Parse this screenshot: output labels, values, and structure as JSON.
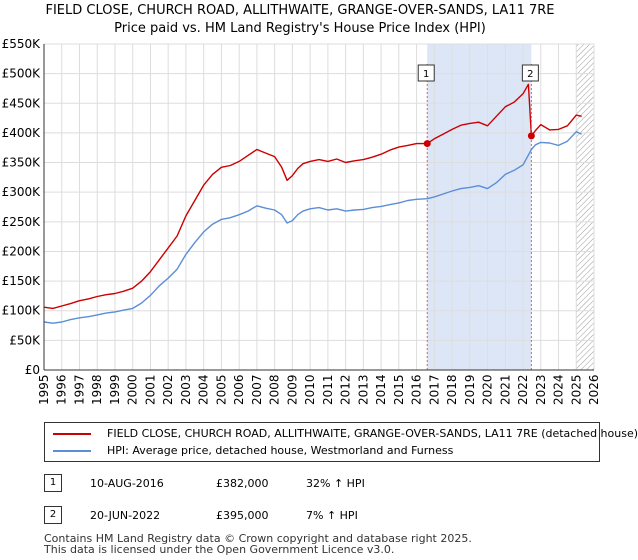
{
  "title_line1": "FIELD CLOSE, CHURCH ROAD, ALLITHWAITE, GRANGE-OVER-SANDS, LA11 7RE",
  "title_line2": "Price paid vs. HM Land Registry's House Price Index (HPI)",
  "chart_data": {
    "type": "line",
    "xlim": [
      1995,
      2026
    ],
    "ylim": [
      0,
      550000
    ],
    "x_ticks": [
      "1995",
      "1996",
      "1997",
      "1998",
      "1999",
      "2000",
      "2001",
      "2002",
      "2003",
      "2004",
      "2005",
      "2006",
      "2007",
      "2008",
      "2009",
      "2010",
      "2011",
      "2012",
      "2013",
      "2014",
      "2015",
      "2016",
      "2017",
      "2018",
      "2019",
      "2020",
      "2021",
      "2022",
      "2023",
      "2024",
      "2025",
      "2026"
    ],
    "y_ticks": [
      {
        "value": 0,
        "label": "£0"
      },
      {
        "value": 50000,
        "label": "£50K"
      },
      {
        "value": 100000,
        "label": "£100K"
      },
      {
        "value": 150000,
        "label": "£150K"
      },
      {
        "value": 200000,
        "label": "£200K"
      },
      {
        "value": 250000,
        "label": "£250K"
      },
      {
        "value": 300000,
        "label": "£300K"
      },
      {
        "value": 350000,
        "label": "£350K"
      },
      {
        "value": 400000,
        "label": "£400K"
      },
      {
        "value": 450000,
        "label": "£450K"
      },
      {
        "value": 500000,
        "label": "£500K"
      },
      {
        "value": 550000,
        "label": "£550K"
      }
    ],
    "grid": true,
    "shaded_region": {
      "from": 2016.6,
      "to": 2022.47,
      "color": "#dde6f7"
    },
    "hatched_region": {
      "from": 2025.0,
      "to": 2026.0
    },
    "series": [
      {
        "name": "FIELD CLOSE, CHURCH ROAD, ALLITHWAITE, GRANGE-OVER-SANDS, LA11 7RE (detached house)",
        "color": "#cc0000",
        "x": [
          1995.0,
          1995.5,
          1996.0,
          1996.5,
          1997.0,
          1997.5,
          1998.0,
          1998.5,
          1999.0,
          1999.5,
          2000.0,
          2000.5,
          2001.0,
          2001.5,
          2002.0,
          2002.5,
          2003.0,
          2003.5,
          2004.0,
          2004.5,
          2005.0,
          2005.5,
          2006.0,
          2006.5,
          2007.0,
          2007.5,
          2008.0,
          2008.4,
          2008.7,
          2009.0,
          2009.3,
          2009.6,
          2010.0,
          2010.5,
          2011.0,
          2011.5,
          2012.0,
          2012.5,
          2013.0,
          2013.5,
          2014.0,
          2014.5,
          2015.0,
          2015.5,
          2016.0,
          2016.6,
          2017.0,
          2017.5,
          2018.0,
          2018.5,
          2019.0,
          2019.5,
          2020.0,
          2020.5,
          2021.0,
          2021.5,
          2022.0,
          2022.3,
          2022.47,
          2022.7,
          2023.0,
          2023.5,
          2024.0,
          2024.5,
          2025.0,
          2025.3
        ],
        "y": [
          106000,
          104000,
          108000,
          112000,
          117000,
          120000,
          124000,
          127000,
          129000,
          133000,
          138000,
          150000,
          166000,
          186000,
          206000,
          226000,
          260000,
          286000,
          312000,
          330000,
          342000,
          345000,
          352000,
          362000,
          372000,
          366000,
          360000,
          342000,
          320000,
          328000,
          340000,
          348000,
          352000,
          355000,
          352000,
          356000,
          350000,
          353000,
          355000,
          359000,
          364000,
          371000,
          376000,
          379000,
          382000,
          382000,
          390000,
          398000,
          406000,
          413000,
          416000,
          418000,
          412000,
          428000,
          444000,
          452000,
          466000,
          482000,
          395000,
          404000,
          414000,
          405000,
          406000,
          412000,
          430000,
          428000
        ]
      },
      {
        "name": "HPI: Average price, detached house, Westmorland and Furness",
        "color": "#5b8ed6",
        "x": [
          1995.0,
          1995.5,
          1996.0,
          1996.5,
          1997.0,
          1997.5,
          1998.0,
          1998.5,
          1999.0,
          1999.5,
          2000.0,
          2000.5,
          2001.0,
          2001.5,
          2002.0,
          2002.5,
          2003.0,
          2003.5,
          2004.0,
          2004.5,
          2005.0,
          2005.5,
          2006.0,
          2006.5,
          2007.0,
          2007.5,
          2008.0,
          2008.4,
          2008.7,
          2009.0,
          2009.3,
          2009.6,
          2010.0,
          2010.5,
          2011.0,
          2011.5,
          2012.0,
          2012.5,
          2013.0,
          2013.5,
          2014.0,
          2014.5,
          2015.0,
          2015.5,
          2016.0,
          2016.6,
          2017.0,
          2017.5,
          2018.0,
          2018.5,
          2019.0,
          2019.5,
          2020.0,
          2020.5,
          2021.0,
          2021.5,
          2022.0,
          2022.47,
          2022.7,
          2023.0,
          2023.5,
          2024.0,
          2024.5,
          2025.0,
          2025.3
        ],
        "y": [
          81000,
          79000,
          81000,
          85000,
          88000,
          90000,
          93000,
          96000,
          98000,
          101000,
          104000,
          113000,
          126000,
          142000,
          155000,
          170000,
          195000,
          215000,
          233000,
          246000,
          254000,
          257000,
          262000,
          268000,
          277000,
          273000,
          270000,
          262000,
          248000,
          252000,
          262000,
          268000,
          272000,
          274000,
          270000,
          272000,
          268000,
          270000,
          271000,
          274000,
          276000,
          279000,
          282000,
          286000,
          288000,
          289000,
          292000,
          297000,
          302000,
          306000,
          308000,
          311000,
          306000,
          316000,
          330000,
          337000,
          346000,
          372000,
          380000,
          384000,
          383000,
          379000,
          386000,
          402000,
          398000
        ]
      }
    ],
    "sales": [
      {
        "marker": "1",
        "x": 2016.6,
        "price": 382000
      },
      {
        "marker": "2",
        "x": 2022.47,
        "price": 395000
      }
    ]
  },
  "legend": {
    "property_label": "FIELD CLOSE, CHURCH ROAD, ALLITHWAITE, GRANGE-OVER-SANDS, LA11 7RE (detached house)",
    "hpi_label": "HPI: Average price, detached house, Westmorland and Furness"
  },
  "sales_table": [
    {
      "marker": "1",
      "date": "10-AUG-2016",
      "price": "£382,000",
      "hpi_change": "32% ↑ HPI"
    },
    {
      "marker": "2",
      "date": "20-JUN-2022",
      "price": "£395,000",
      "hpi_change": "7% ↑ HPI"
    }
  ],
  "footer": {
    "line1": "Contains HM Land Registry data © Crown copyright and database right 2025.",
    "line2": "This data is licensed under the Open Government Licence v3.0."
  },
  "colors": {
    "property": "#cc0000",
    "hpi": "#5b8ed6",
    "grid": "#dddddd",
    "shade": "#dde6f7"
  }
}
